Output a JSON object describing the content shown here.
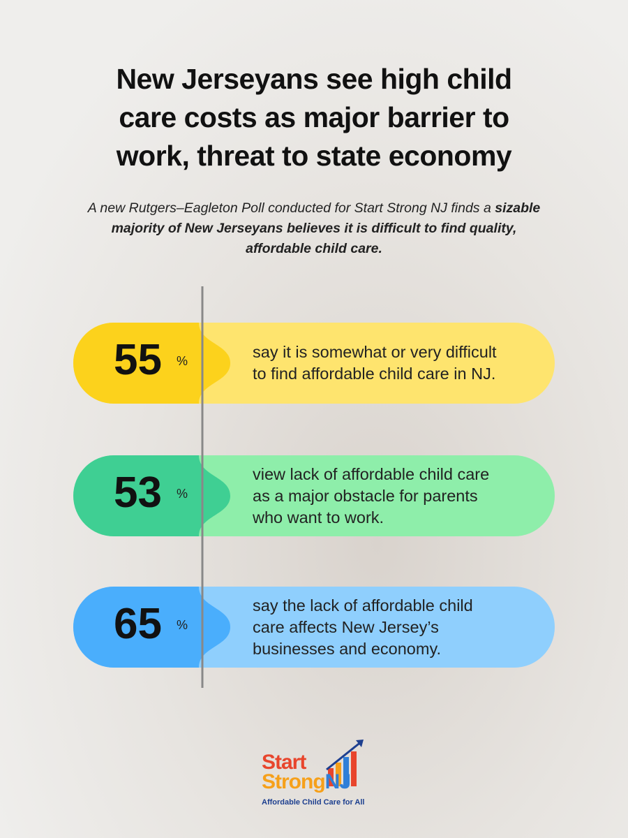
{
  "header": {
    "title_lines": [
      "New Jerseyans see high child",
      "care costs as major barrier to",
      "work, threat to state economy"
    ]
  },
  "intro": {
    "text": "A new Rutgers–Eagleton Poll conducted for Start Strong NJ finds a ",
    "bold": "sizable majority of New Jerseyans believes it is difficult to find quality, affordable child care."
  },
  "stats": [
    {
      "value": 55,
      "unit": "%",
      "lines": [
        "say it is somewhat or very difficult",
        "to find affordable child care in NJ."
      ]
    },
    {
      "value": 53,
      "unit": "%",
      "lines": [
        "view lack of affordable child care",
        "as a major obstacle for parents",
        "who want to work."
      ]
    },
    {
      "value": 65,
      "unit": "%",
      "lines": [
        "say the lack of affordable child",
        "care affects New Jersey’s",
        "businesses and economy."
      ]
    }
  ],
  "logo": {
    "word1": "Start",
    "word2": "Strong",
    "word3": "NJ",
    "tagline": "Affordable Child Care for All"
  }
}
